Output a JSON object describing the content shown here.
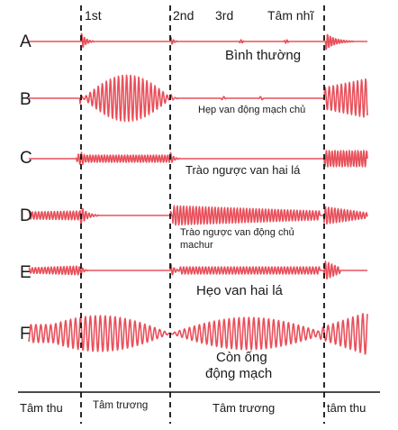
{
  "header": {
    "s1": "1st",
    "s2": "2nd",
    "s3": "3rd",
    "diastolic_sound": "Tâm nhĩ"
  },
  "rows": [
    {
      "letter": "A",
      "caption": "Bình thường"
    },
    {
      "letter": "B",
      "caption": "Hẹp van động mạch chủ"
    },
    {
      "letter": "C",
      "caption": "Trào ngược van hai lá"
    },
    {
      "letter": "D",
      "caption_line1": "Trào ngược van động chủ",
      "caption_line2": "machur"
    },
    {
      "letter": "E",
      "caption": "Hẹo van hai lá"
    },
    {
      "letter": "F",
      "caption_line1": "Còn ống",
      "caption_line2": "động mạch"
    }
  ],
  "footer": {
    "systole_left": "Tâm thu",
    "diastole_1": "Tâm trương",
    "diastole_2": "Tâm trương",
    "systole_right": "tâm thu"
  },
  "colors": {
    "waveform": "#e8505b",
    "dashed_line": "#111111",
    "text": "#1a1a1a"
  }
}
